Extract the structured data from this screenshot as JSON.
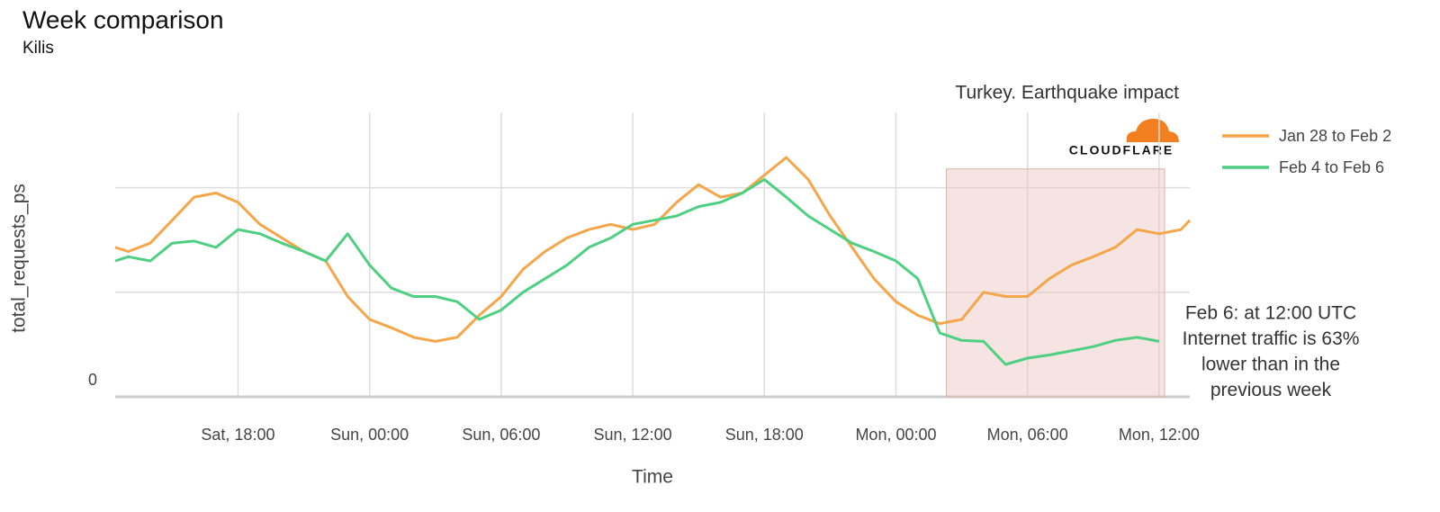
{
  "chart_data": {
    "type": "line",
    "title": "Week comparison",
    "subtitle": "Kilis",
    "annotation": "Turkey. Earthquake impact",
    "logo_text": "CLOUDFLARE",
    "xlabel": "Time",
    "ylabel": "total_requests_ps",
    "x": [
      12.4,
      13,
      14,
      15,
      16,
      17,
      18,
      19,
      20,
      21,
      22,
      23,
      24,
      25,
      26,
      27,
      28,
      29,
      30,
      31,
      32,
      33,
      34,
      35,
      36,
      37,
      38,
      39,
      40,
      41,
      42,
      43,
      44,
      45,
      46,
      47,
      48,
      49,
      50,
      51,
      52,
      53,
      54,
      55,
      56,
      57,
      58,
      59,
      60,
      61,
      61.4
    ],
    "series": [
      {
        "name": "Jan 28 to Feb 2",
        "color": "#f5a64a",
        "values": [
          1.43,
          1.39,
          1.47,
          1.69,
          1.91,
          1.95,
          1.86,
          1.65,
          1.52,
          1.39,
          1.3,
          0.96,
          0.74,
          0.66,
          0.57,
          0.53,
          0.57,
          0.78,
          0.96,
          1.22,
          1.39,
          1.52,
          1.6,
          1.65,
          1.6,
          1.65,
          1.86,
          2.03,
          1.91,
          1.95,
          2.12,
          2.29,
          2.08,
          1.73,
          1.43,
          1.13,
          0.91,
          0.78,
          0.7,
          0.74,
          1.0,
          0.96,
          0.96,
          1.13,
          1.26,
          1.34,
          1.43,
          1.6,
          1.56,
          1.6,
          1.69
        ]
      },
      {
        "name": "Feb 4 to Feb 6",
        "color": "#4fcf82",
        "values": [
          1.3,
          1.34,
          1.3,
          1.47,
          1.49,
          1.43,
          1.6,
          1.56,
          1.47,
          1.39,
          1.3,
          1.56,
          1.26,
          1.04,
          0.96,
          0.96,
          0.91,
          0.74,
          0.83,
          1.0,
          1.13,
          1.26,
          1.43,
          1.52,
          1.65,
          1.69,
          1.73,
          1.82,
          1.86,
          1.95,
          2.08,
          1.91,
          1.73,
          1.6,
          1.47,
          1.39,
          1.3,
          1.13,
          0.61,
          0.54,
          0.53,
          0.31,
          0.37,
          0.4,
          0.44,
          0.48,
          0.54,
          0.57,
          0.53,
          null,
          null
        ]
      }
    ],
    "xlim": [
      12.4,
      61.4
    ],
    "xticks": [
      {
        "value": 18,
        "label": "Sat, 18:00"
      },
      {
        "value": 24,
        "label": "Sun, 00:00"
      },
      {
        "value": 30,
        "label": "Sun, 06:00"
      },
      {
        "value": 36,
        "label": "Sun, 12:00"
      },
      {
        "value": 42,
        "label": "Sun, 18:00"
      },
      {
        "value": 48,
        "label": "Mon, 00:00"
      },
      {
        "value": 54,
        "label": "Mon, 06:00"
      },
      {
        "value": 60,
        "label": "Mon, 12:00"
      }
    ],
    "ylim": [
      0,
      2.72
    ],
    "yticks": [
      0,
      {
        "value": 1,
        "label": null
      },
      {
        "value": 2,
        "label": null
      }
    ],
    "grid": true,
    "legend": "right",
    "highlight": {
      "x": [
        50.3,
        60.25
      ],
      "top": 2.18,
      "color": "#e8c4bd"
    },
    "highlight_text": [
      "Feb 6: at 12:00 UTC",
      "Internet traffic is 63%",
      "lower than in the",
      "previous week"
    ]
  }
}
